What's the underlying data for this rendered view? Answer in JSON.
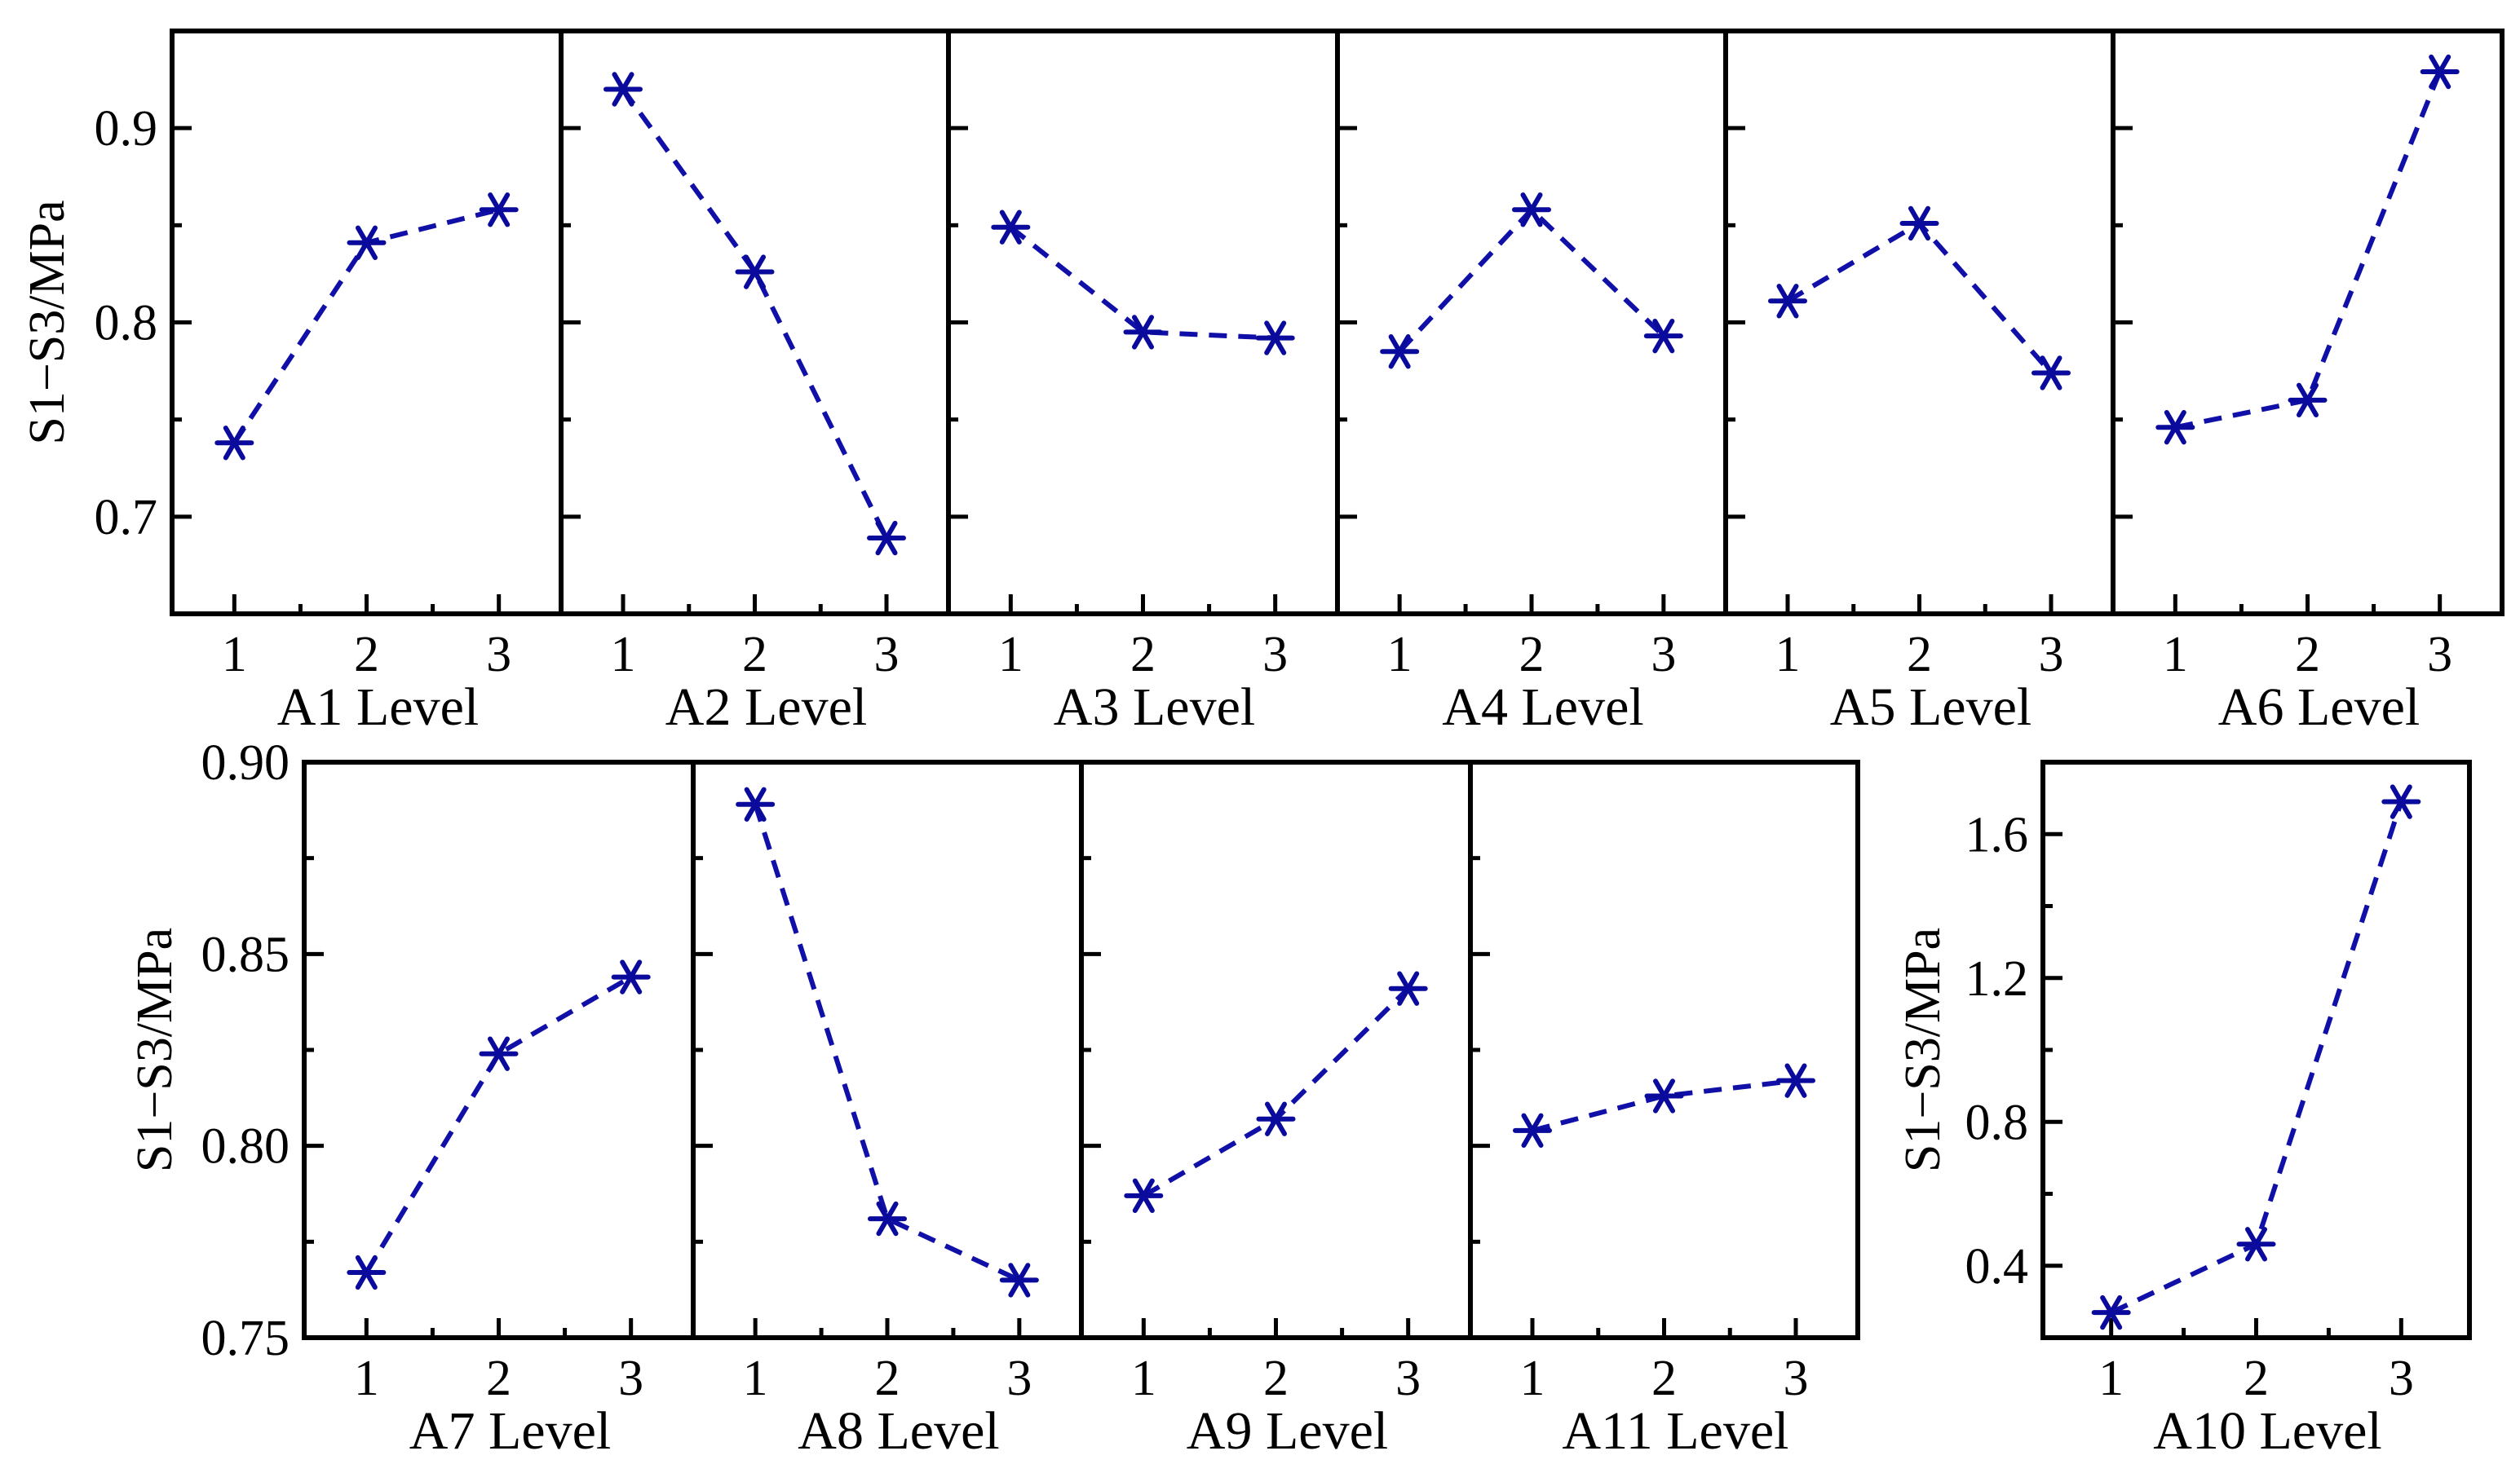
{
  "chart_data": [
    {
      "id": "A1",
      "type": "line",
      "xlabel": "A1 Level",
      "categories": [
        "1",
        "2",
        "3"
      ],
      "values": [
        0.738,
        0.841,
        0.858
      ],
      "ylabel": "S1−S3/MPa",
      "ylim": [
        0.65,
        0.95
      ],
      "yticks": [
        "0.7",
        "0.8",
        "0.9"
      ]
    },
    {
      "id": "A2",
      "type": "line",
      "xlabel": "A2 Level",
      "categories": [
        "1",
        "2",
        "3"
      ],
      "values": [
        0.92,
        0.826,
        0.689
      ],
      "ylim": [
        0.65,
        0.95
      ]
    },
    {
      "id": "A3",
      "type": "line",
      "xlabel": "A3 Level",
      "categories": [
        "1",
        "2",
        "3"
      ],
      "values": [
        0.849,
        0.795,
        0.792
      ],
      "ylim": [
        0.65,
        0.95
      ]
    },
    {
      "id": "A4",
      "type": "line",
      "xlabel": "A4 Level",
      "categories": [
        "1",
        "2",
        "3"
      ],
      "values": [
        0.785,
        0.858,
        0.793
      ],
      "ylim": [
        0.65,
        0.95
      ]
    },
    {
      "id": "A5",
      "type": "line",
      "xlabel": "A5 Level",
      "categories": [
        "1",
        "2",
        "3"
      ],
      "values": [
        0.811,
        0.851,
        0.774
      ],
      "ylim": [
        0.65,
        0.95
      ]
    },
    {
      "id": "A6",
      "type": "line",
      "xlabel": "A6 Level",
      "categories": [
        "1",
        "2",
        "3"
      ],
      "values": [
        0.746,
        0.76,
        0.929
      ],
      "ylim": [
        0.65,
        0.95
      ]
    },
    {
      "id": "A7",
      "type": "line",
      "xlabel": "A7 Level",
      "categories": [
        "1",
        "2",
        "3"
      ],
      "values": [
        0.767,
        0.824,
        0.844
      ],
      "ylabel": "S1−S3/MPa",
      "ylim": [
        0.75,
        0.9
      ],
      "yticks": [
        "0.75",
        "0.80",
        "0.85",
        "0.90"
      ]
    },
    {
      "id": "A8",
      "type": "line",
      "xlabel": "A8 Level",
      "categories": [
        "1",
        "2",
        "3"
      ],
      "values": [
        0.889,
        0.781,
        0.765
      ],
      "ylim": [
        0.75,
        0.9
      ]
    },
    {
      "id": "A9",
      "type": "line",
      "xlabel": "A9 Level",
      "categories": [
        "1",
        "2",
        "3"
      ],
      "values": [
        0.787,
        0.807,
        0.841
      ],
      "ylim": [
        0.75,
        0.9
      ]
    },
    {
      "id": "A11",
      "type": "line",
      "xlabel": "A11 Level",
      "categories": [
        "1",
        "2",
        "3"
      ],
      "values": [
        0.804,
        0.813,
        0.817
      ],
      "ylim": [
        0.75,
        0.9
      ]
    },
    {
      "id": "A10",
      "type": "line",
      "xlabel": "A10 Level",
      "categories": [
        "1",
        "2",
        "3"
      ],
      "values": [
        0.27,
        0.46,
        1.69
      ],
      "ylabel": "S1−S3/MPa",
      "ylim": [
        0.2,
        1.8
      ],
      "yticks": [
        "0.4",
        "0.8",
        "1.2",
        "1.6"
      ]
    }
  ]
}
